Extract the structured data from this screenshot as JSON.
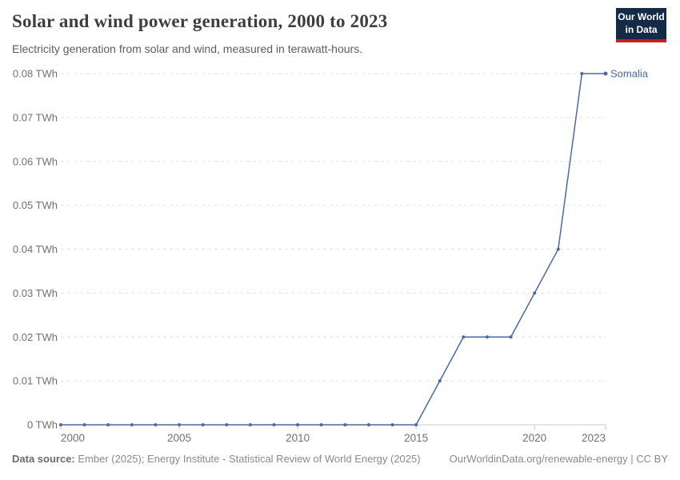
{
  "header": {
    "title": "Solar and wind power generation, 2000 to 2023",
    "subtitle": "Electricity generation from solar and wind, measured in terawatt-hours.",
    "logo": {
      "line1": "Our World",
      "line2": "in Data"
    }
  },
  "chart_data": {
    "type": "line",
    "title": "Solar and wind power generation, 2000 to 2023",
    "x": [
      2000,
      2001,
      2002,
      2003,
      2004,
      2005,
      2006,
      2007,
      2008,
      2009,
      2010,
      2011,
      2012,
      2013,
      2014,
      2015,
      2016,
      2017,
      2018,
      2019,
      2020,
      2021,
      2022,
      2023
    ],
    "series": [
      {
        "name": "Somalia",
        "color": "#4a6b9e",
        "values": [
          0,
          0,
          0,
          0,
          0,
          0,
          0,
          0,
          0,
          0,
          0,
          0,
          0,
          0,
          0,
          0,
          0.01,
          0.02,
          0.02,
          0.02,
          0.03,
          0.04,
          0.08,
          0.08
        ]
      }
    ],
    "xlabel": "",
    "ylabel": "",
    "xlim": [
      2000,
      2023
    ],
    "ylim": [
      0,
      0.08
    ],
    "y_ticks": [
      0,
      0.01,
      0.02,
      0.03,
      0.04,
      0.05,
      0.06,
      0.07,
      0.08
    ],
    "y_tick_labels": [
      "0 TWh",
      "0.01 TWh",
      "0.02 TWh",
      "0.03 TWh",
      "0.04 TWh",
      "0.05 TWh",
      "0.06 TWh",
      "0.07 TWh",
      "0.08 TWh"
    ],
    "x_tick_years": [
      2000,
      2005,
      2010,
      2015,
      2020,
      2023
    ],
    "grid": true,
    "legend_position": "line-end-label"
  },
  "footer": {
    "source_label": "Data source:",
    "source_text": " Ember (2025); Energy Institute - Statistical Review of World Energy (2025)",
    "link": "OurWorldinData.org/renewable-energy | CC BY"
  },
  "colors": {
    "line": "#4a6b9e",
    "grid": "#e2e2e2",
    "axis": "#c8c8c8",
    "tick_label": "#707070",
    "title": "#3e3e3e",
    "subtitle": "#5e5e5e",
    "footer_text": "#8a8a8a",
    "logo_bg": "#132b46",
    "logo_red": "#c81e19"
  }
}
